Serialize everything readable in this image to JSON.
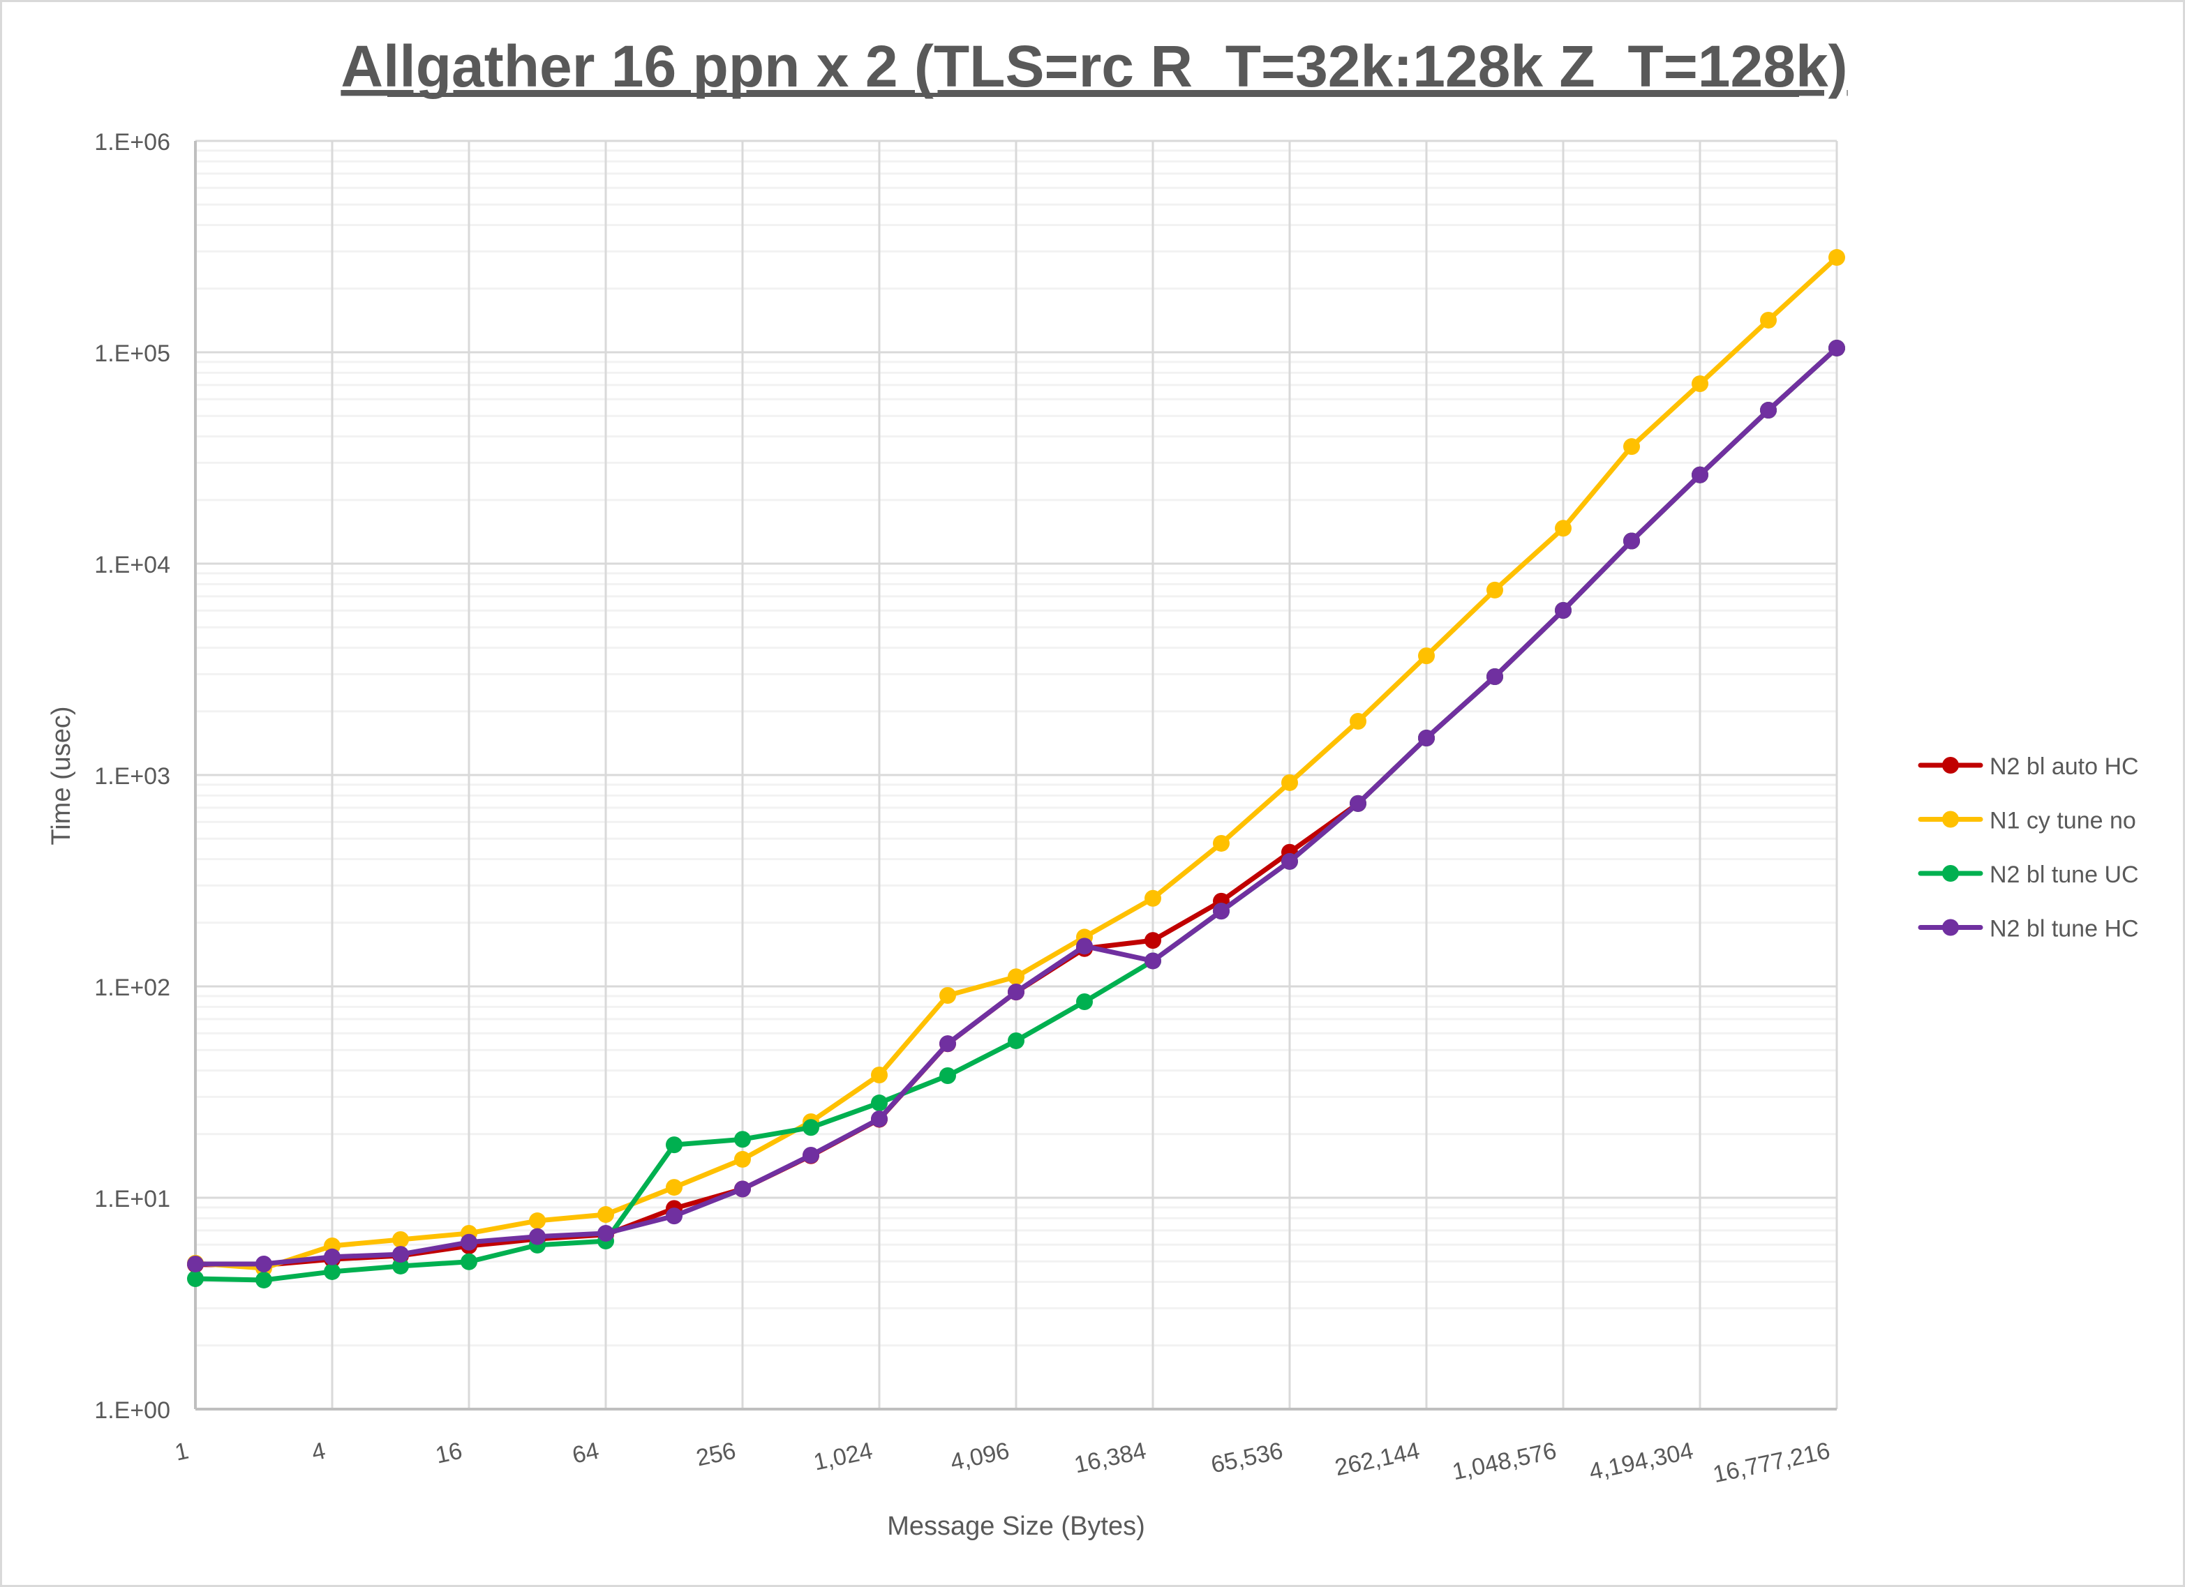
{
  "chart_data": {
    "type": "line",
    "title": "Allgather 16 ppn x 2 (TLS=rc R_T=32k:128k Z_T=128k)",
    "xlabel": "Message Size (Bytes)",
    "ylabel": "Time (usec)",
    "x_scale": "log2",
    "y_scale": "log10",
    "ylim": [
      1,
      1000000
    ],
    "xlim": [
      1,
      16777216
    ],
    "grid": true,
    "legend_position": "right",
    "x": [
      1,
      2,
      4,
      8,
      16,
      32,
      64,
      128,
      256,
      512,
      1024,
      2048,
      4096,
      8192,
      16384,
      32768,
      65536,
      131072,
      262144,
      524288,
      1048576,
      2097152,
      4194304,
      8388608,
      16777216
    ],
    "x_tick_values": [
      1,
      4,
      16,
      64,
      256,
      1024,
      4096,
      16384,
      65536,
      262144,
      1048576,
      4194304,
      16777216
    ],
    "x_tick_labels": [
      "1",
      "4",
      "16",
      "64",
      "256",
      "1,024",
      "4,096",
      "16,384",
      "65,536",
      "262,144",
      "1,048,576",
      "4,194,304",
      "16,777,216"
    ],
    "y_tick_values": [
      1,
      10,
      100,
      1000,
      10000,
      100000,
      1000000
    ],
    "y_tick_labels": [
      "1.E+00",
      "1.E+01",
      "1.E+02",
      "1.E+03",
      "1.E+04",
      "1.E+05",
      "1.E+06"
    ],
    "series": [
      {
        "name": "N2 bl auto HC",
        "color": "#C00000",
        "values": [
          4.83,
          4.8,
          5.12,
          5.32,
          5.92,
          6.38,
          6.69,
          8.9,
          11.0,
          15.8,
          23.5,
          53.5,
          94,
          151,
          165,
          253,
          431,
          733,
          1496,
          2920,
          6010,
          12800,
          26300,
          53200,
          104700
        ]
      },
      {
        "name": "N1 cy tune no",
        "color": "#FFC000",
        "values": [
          4.9,
          4.64,
          5.92,
          6.34,
          6.79,
          7.78,
          8.33,
          11.2,
          15.2,
          22.9,
          38.1,
          90.6,
          111,
          171,
          261,
          475,
          920,
          1795,
          3664,
          7500,
          14700,
          35800,
          71000,
          141900,
          281000
        ]
      },
      {
        "name": "N2 bl tune UC",
        "color": "#00B050",
        "values": [
          4.14,
          4.08,
          4.47,
          4.75,
          4.98,
          5.97,
          6.24,
          17.8,
          18.9,
          21.5,
          28.1,
          37.8,
          55.3,
          84.6,
          132,
          227,
          390,
          733,
          1496,
          2920,
          6010,
          12800,
          26300,
          53200,
          104700
        ]
      },
      {
        "name": "N2 bl tune HC",
        "color": "#7030A0",
        "values": [
          4.86,
          4.86,
          5.25,
          5.4,
          6.16,
          6.55,
          6.79,
          8.2,
          11.0,
          15.9,
          23.6,
          53.6,
          94.1,
          155,
          132,
          227,
          390,
          733,
          1496,
          2920,
          6010,
          12800,
          26300,
          53200,
          104700
        ]
      }
    ]
  },
  "style": {
    "text_color": "#595959",
    "major_grid_color": "#D9D9D9",
    "minor_grid_color": "#F2F2F2",
    "axis_color": "#BFBFBF",
    "border_color": "#D9D9D9"
  }
}
